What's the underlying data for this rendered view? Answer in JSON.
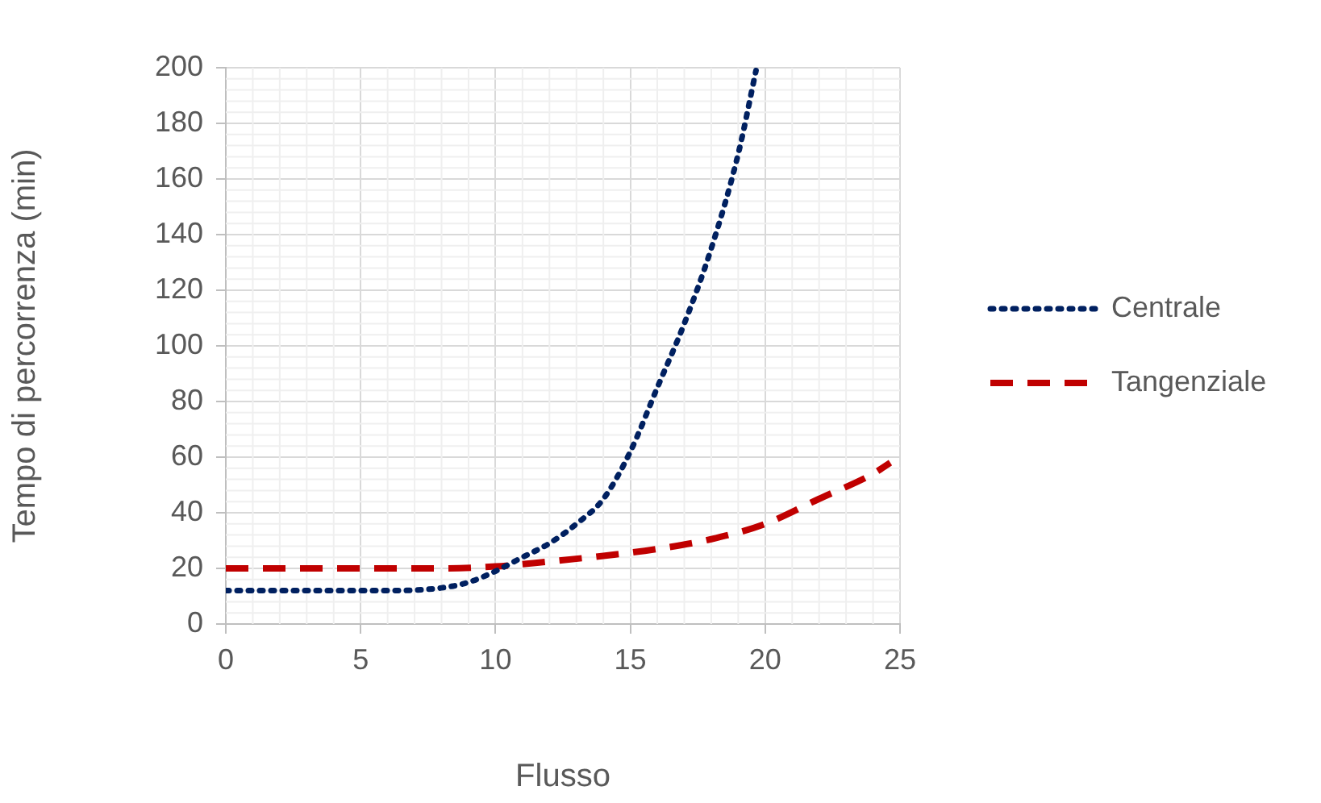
{
  "chart_data": {
    "type": "line",
    "xlabel": "Flusso",
    "ylabel": "Tempo di percorrenza (min)",
    "xlim": [
      0,
      25
    ],
    "xticks": [
      0,
      5,
      10,
      15,
      20,
      25
    ],
    "ylim": [
      0,
      200
    ],
    "yticks": [
      0,
      20,
      40,
      60,
      80,
      100,
      120,
      140,
      160,
      180,
      200
    ],
    "grid": true,
    "legend": "right",
    "marker": "none",
    "series": [
      {
        "name": "Centrale",
        "color": "#002060",
        "line_style": "dotted",
        "x": [
          0,
          2,
          4,
          6,
          8,
          9,
          10,
          11,
          12,
          13,
          14,
          15,
          16,
          17,
          18,
          19,
          19.66
        ],
        "values": [
          12,
          12,
          12,
          12,
          13,
          15,
          19,
          24,
          29,
          36,
          45,
          62,
          85,
          108,
          135,
          169,
          199
        ]
      },
      {
        "name": "Tangenziale",
        "color": "#c00000",
        "line_style": "dashed",
        "x": [
          0,
          4,
          8,
          10,
          12,
          14,
          16,
          18,
          20,
          22,
          24,
          24.64
        ],
        "values": [
          20,
          20,
          20,
          20.7,
          22.5,
          24.5,
          27,
          30.5,
          36,
          45,
          54,
          58
        ]
      }
    ]
  }
}
